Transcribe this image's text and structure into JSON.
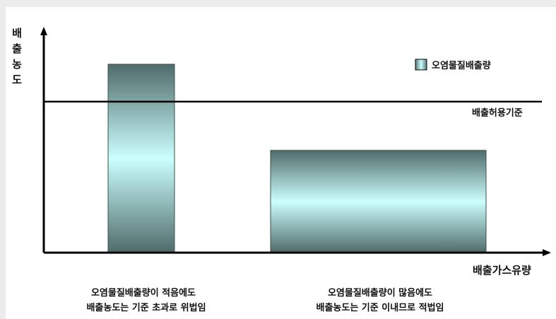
{
  "diagram": {
    "y_axis_label": "배출농도",
    "x_axis_label": "배출가스유량",
    "legend_label": "오염물질배출량",
    "threshold_label": "배출허용기준",
    "captions": [
      {
        "line1": "오염물질배출량이 적음에도",
        "line2": "배출농도는 기준 초과로 위법임"
      },
      {
        "line1": "오염물질배출량이 많음에도",
        "line2": "배출농도는 기준 이내므로 적법임"
      }
    ],
    "colors": {
      "background": "#ececec",
      "panel": "#ffffff",
      "bar_edge": "#4f6b6a",
      "bar_center": "#ccffff",
      "axis": "#000000"
    }
  }
}
